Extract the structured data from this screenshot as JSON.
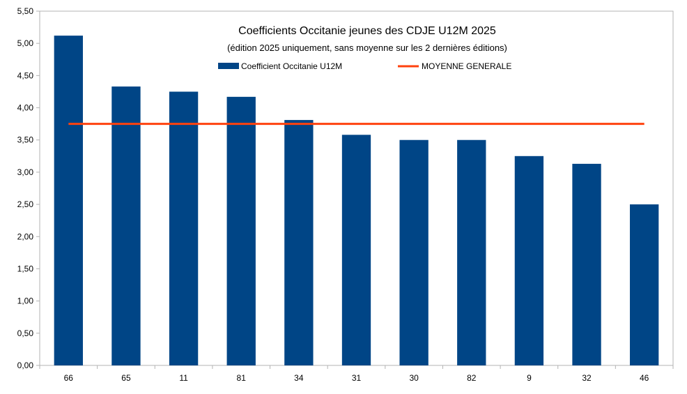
{
  "chart_data": {
    "type": "bar",
    "title": "Coefficients Occitanie jeunes des CDJE U12M 2025",
    "subtitle": "(édition 2025 uniquement, sans moyenne sur les 2 dernières éditions)",
    "xlabel": "",
    "ylabel": "",
    "categories": [
      "66",
      "65",
      "11",
      "81",
      "34",
      "31",
      "30",
      "82",
      "9",
      "32",
      "46"
    ],
    "series": [
      {
        "name": "Coefficient Occitanie U12M",
        "type": "bar",
        "color": "#004586",
        "values": [
          5.12,
          4.33,
          4.25,
          4.17,
          3.81,
          3.58,
          3.5,
          3.5,
          3.25,
          3.13,
          2.5
        ]
      },
      {
        "name": "MOYENNE GENERALE",
        "type": "line",
        "color": "#ff420e",
        "value": 3.75
      }
    ],
    "ylim": [
      0,
      5.5
    ],
    "yticks": [
      "0,00",
      "0,50",
      "1,00",
      "1,50",
      "2,00",
      "2,50",
      "3,00",
      "3,50",
      "4,00",
      "4,50",
      "5,00",
      "5,50"
    ],
    "grid": false,
    "legend_position": "top-center"
  }
}
